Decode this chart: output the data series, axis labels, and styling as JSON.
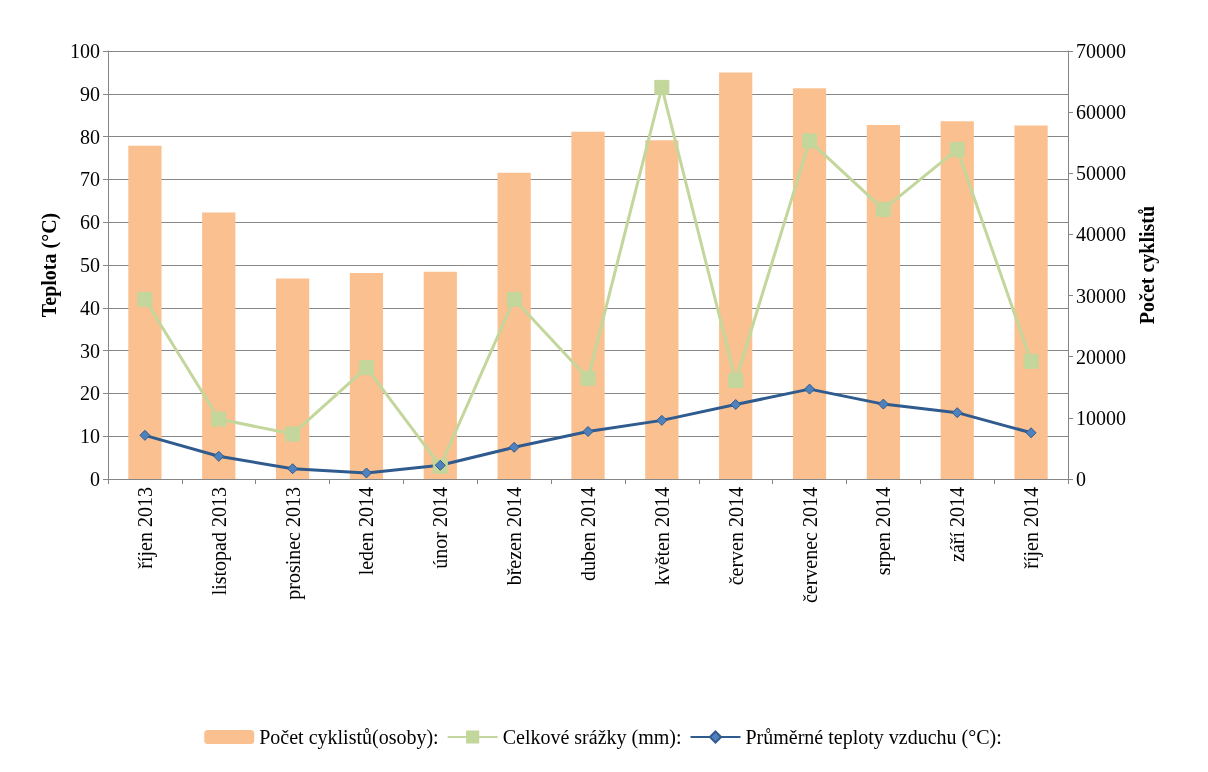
{
  "chart_data": {
    "type": "bar",
    "ylabel": "Teplota (°C)",
    "y2label": "Počet cyklistů",
    "categories": [
      "říjen 2013",
      "listopad 2013",
      "prosinec 2013",
      "leden 2014",
      "únor 2014",
      "březen 2014",
      "duben 2014",
      "květen 2014",
      "červen 2014",
      "červenec 2014",
      "srpen 2014",
      "září 2014",
      "říjen 2014"
    ],
    "series": [
      {
        "name": "Počet cyklistů(osoby):",
        "axis": "y2",
        "color": "#fac090",
        "values": [
          54500,
          43600,
          32800,
          33700,
          33900,
          50100,
          56800,
          55400,
          66500,
          63900,
          57900,
          58500,
          57800
        ]
      },
      {
        "name": "Celkové srážky (mm):",
        "type": "line",
        "marker": "square",
        "color": "#c3d69b",
        "values": [
          42,
          14,
          10.5,
          26,
          3,
          42,
          23.5,
          91.5,
          23,
          79,
          63,
          77,
          27.5
        ]
      },
      {
        "name": "Průměrné teploty vzduchu (°C):",
        "type": "line",
        "marker": "diamond",
        "color": "#2f5b8f",
        "values": [
          10.2,
          5.3,
          2.4,
          1.4,
          3.2,
          7.4,
          11.1,
          13.7,
          17.4,
          21,
          17.5,
          15.5,
          10.8
        ]
      }
    ],
    "ylim": [
      0,
      100
    ],
    "yticks": [
      0,
      10,
      20,
      30,
      40,
      50,
      60,
      70,
      80,
      90,
      100
    ],
    "y2lim": [
      0,
      70000
    ],
    "y2ticks": [
      0,
      10000,
      20000,
      30000,
      40000,
      50000,
      60000,
      70000
    ],
    "grid": "y",
    "legend": "bottom"
  }
}
